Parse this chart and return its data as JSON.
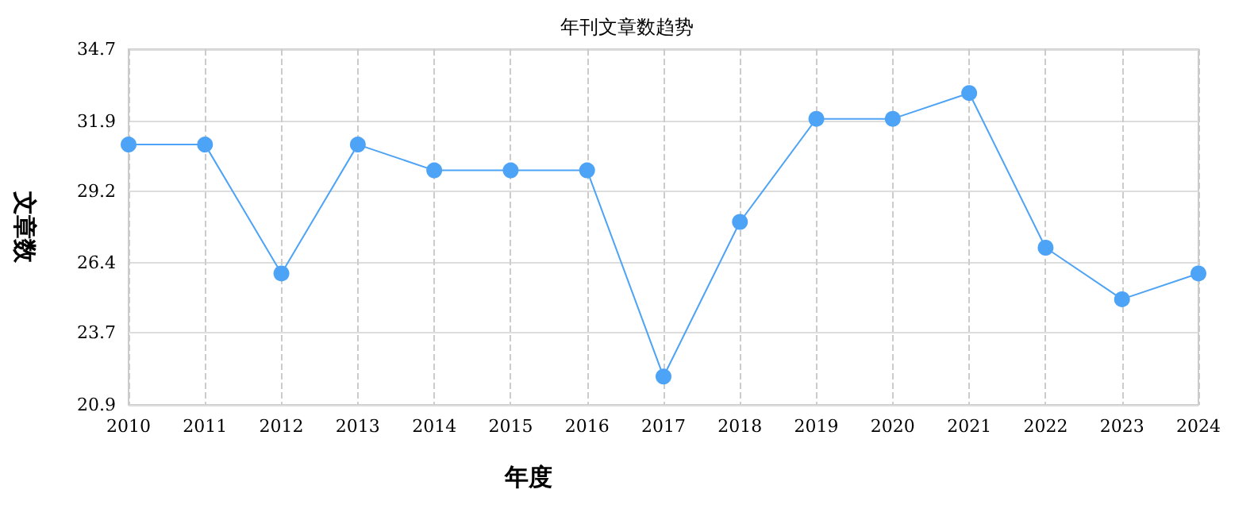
{
  "chart_data": {
    "type": "line",
    "title": "年刊文章数趋势",
    "xlabel": "年度",
    "ylabel": "文章数",
    "categories": [
      "2010",
      "2011",
      "2012",
      "2013",
      "2014",
      "2015",
      "2016",
      "2017",
      "2018",
      "2019",
      "2020",
      "2021",
      "2022",
      "2023",
      "2024"
    ],
    "series": [
      {
        "color": "#4da3f5",
        "values": [
          31,
          31,
          26,
          31,
          30,
          30,
          30,
          22,
          28,
          32,
          32,
          33,
          27,
          25,
          26
        ]
      }
    ],
    "ylim": [
      20.9,
      34.7
    ],
    "yticks": [
      20.9,
      23.7,
      26.4,
      29.2,
      31.9,
      34.7
    ],
    "grid": true,
    "marker": "circle",
    "line_style": "solid"
  }
}
